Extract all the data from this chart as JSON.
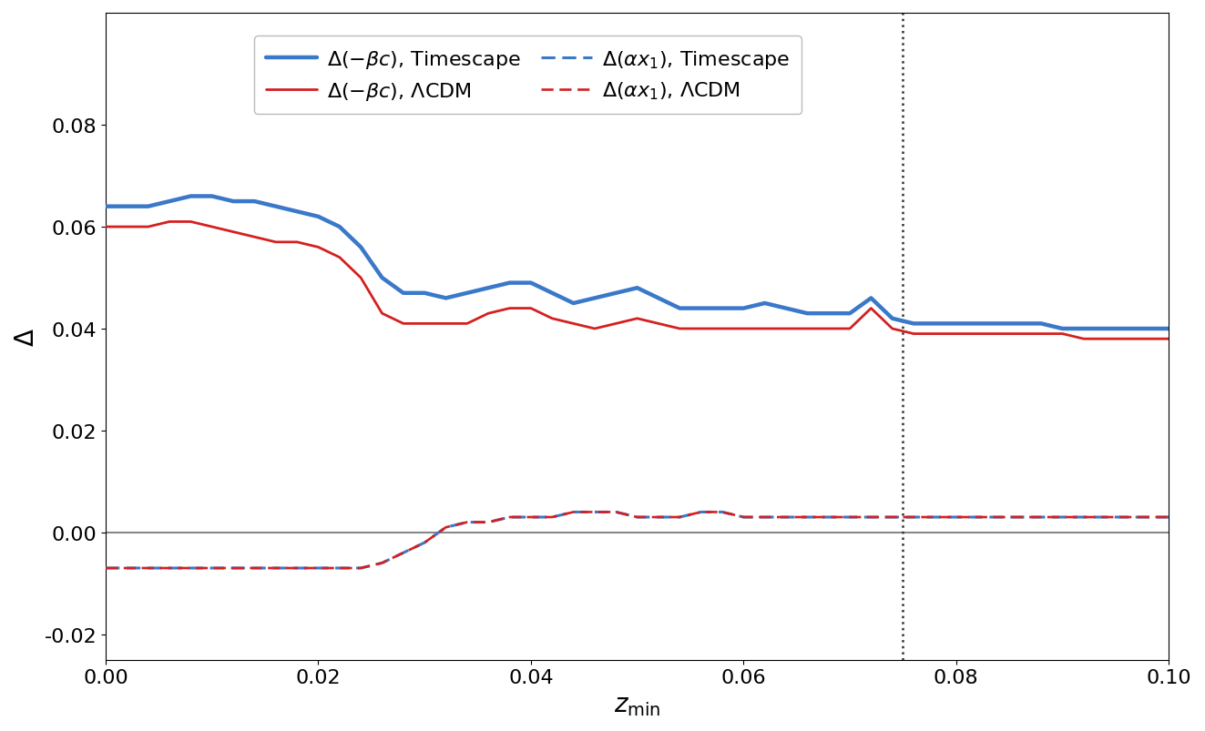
{
  "xlabel": "$z_{\\mathrm{min}}$",
  "ylabel": "$\\Delta$",
  "xlim": [
    0.0,
    0.1
  ],
  "ylim": [
    -0.025,
    0.102
  ],
  "yticks": [
    -0.02,
    0.0,
    0.02,
    0.04,
    0.06,
    0.08
  ],
  "xticks": [
    0.0,
    0.02,
    0.04,
    0.06,
    0.08,
    0.1
  ],
  "vline_x": 0.075,
  "vline_color": "#333333",
  "hline_y": 0.0,
  "hline_color": "#888888",
  "blue_color": "#3a78c9",
  "red_color": "#d42020",
  "blue_lw": 3.2,
  "red_lw": 2.0,
  "dashed_lw": 2.2,
  "legend_fontsize": 16,
  "axis_fontsize": 20,
  "tick_fontsize": 16,
  "x": [
    0.0,
    0.002,
    0.004,
    0.006,
    0.008,
    0.01,
    0.012,
    0.014,
    0.016,
    0.018,
    0.02,
    0.022,
    0.024,
    0.026,
    0.028,
    0.03,
    0.032,
    0.034,
    0.036,
    0.038,
    0.04,
    0.042,
    0.044,
    0.046,
    0.048,
    0.05,
    0.052,
    0.054,
    0.056,
    0.058,
    0.06,
    0.062,
    0.064,
    0.066,
    0.068,
    0.07,
    0.072,
    0.074,
    0.076,
    0.078,
    0.08,
    0.082,
    0.084,
    0.086,
    0.088,
    0.09,
    0.092,
    0.094,
    0.096,
    0.098,
    0.1
  ],
  "blue_solid": [
    0.064,
    0.064,
    0.064,
    0.065,
    0.066,
    0.066,
    0.065,
    0.065,
    0.064,
    0.063,
    0.062,
    0.06,
    0.056,
    0.05,
    0.047,
    0.047,
    0.046,
    0.047,
    0.048,
    0.049,
    0.049,
    0.047,
    0.045,
    0.046,
    0.047,
    0.048,
    0.046,
    0.044,
    0.044,
    0.044,
    0.044,
    0.045,
    0.044,
    0.043,
    0.043,
    0.043,
    0.046,
    0.042,
    0.041,
    0.041,
    0.041,
    0.041,
    0.041,
    0.041,
    0.041,
    0.04,
    0.04,
    0.04,
    0.04,
    0.04,
    0.04
  ],
  "red_solid": [
    0.06,
    0.06,
    0.06,
    0.061,
    0.061,
    0.06,
    0.059,
    0.058,
    0.057,
    0.057,
    0.056,
    0.054,
    0.05,
    0.043,
    0.041,
    0.041,
    0.041,
    0.041,
    0.043,
    0.044,
    0.044,
    0.042,
    0.041,
    0.04,
    0.041,
    0.042,
    0.041,
    0.04,
    0.04,
    0.04,
    0.04,
    0.04,
    0.04,
    0.04,
    0.04,
    0.04,
    0.044,
    0.04,
    0.039,
    0.039,
    0.039,
    0.039,
    0.039,
    0.039,
    0.039,
    0.039,
    0.038,
    0.038,
    0.038,
    0.038,
    0.038
  ],
  "blue_dashed": [
    -0.007,
    -0.007,
    -0.007,
    -0.007,
    -0.007,
    -0.007,
    -0.007,
    -0.007,
    -0.007,
    -0.007,
    -0.007,
    -0.007,
    -0.007,
    -0.006,
    -0.004,
    -0.002,
    0.001,
    0.002,
    0.002,
    0.003,
    0.003,
    0.003,
    0.004,
    0.004,
    0.004,
    0.003,
    0.003,
    0.003,
    0.004,
    0.004,
    0.003,
    0.003,
    0.003,
    0.003,
    0.003,
    0.003,
    0.003,
    0.003,
    0.003,
    0.003,
    0.003,
    0.003,
    0.003,
    0.003,
    0.003,
    0.003,
    0.003,
    0.003,
    0.003,
    0.003,
    0.003
  ],
  "red_dashed": [
    -0.007,
    -0.007,
    -0.007,
    -0.007,
    -0.007,
    -0.007,
    -0.007,
    -0.007,
    -0.007,
    -0.007,
    -0.007,
    -0.007,
    -0.007,
    -0.006,
    -0.004,
    -0.002,
    0.001,
    0.002,
    0.002,
    0.003,
    0.003,
    0.003,
    0.004,
    0.004,
    0.004,
    0.003,
    0.003,
    0.003,
    0.004,
    0.004,
    0.003,
    0.003,
    0.003,
    0.003,
    0.003,
    0.003,
    0.003,
    0.003,
    0.003,
    0.003,
    0.003,
    0.003,
    0.003,
    0.003,
    0.003,
    0.003,
    0.003,
    0.003,
    0.003,
    0.003,
    0.003
  ]
}
